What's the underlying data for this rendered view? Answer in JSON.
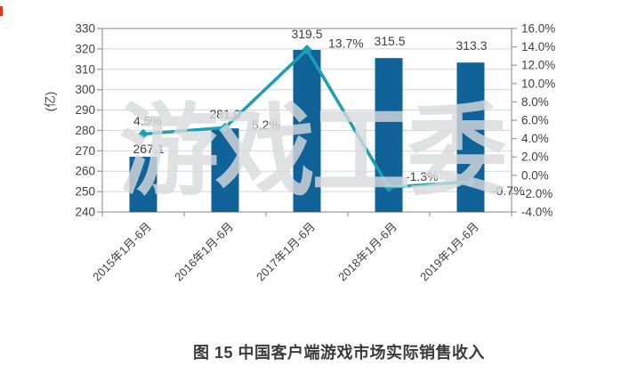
{
  "caption": "图 15 中国客户端游戏市场实际销售收入",
  "watermark": "游戏工委",
  "chart_data": {
    "type": "combo-bar-line",
    "categories": [
      "2015年1月-6月",
      "2016年1月-6月",
      "2017年1月-6月",
      "2018年1月-6月",
      "2019年1月-6月"
    ],
    "series": [
      {
        "name": "client-game-revenue",
        "type": "bar",
        "values": [
          267.1,
          281.0,
          319.5,
          315.5,
          313.3
        ],
        "labels": [
          "267.1",
          "281.0",
          "319.5",
          "315.5",
          "313.3"
        ],
        "axis": "left",
        "color": "#0f6398"
      },
      {
        "name": "growth-rate",
        "type": "line",
        "values": [
          4.5,
          5.2,
          13.7,
          -1.3,
          -0.7
        ],
        "labels": [
          "4.5%",
          "5.2%",
          "13.7%",
          "-1.3%",
          "-0.7%"
        ],
        "axis": "right",
        "color": "#1a9fb4"
      }
    ],
    "left_axis": {
      "label": "(亿)",
      "min": 240,
      "max": 330,
      "step": 10,
      "tick_labels": [
        "330",
        "320",
        "310",
        "300",
        "290",
        "280",
        "270",
        "260",
        "250",
        "240"
      ]
    },
    "right_axis": {
      "min": -4,
      "max": 16,
      "step": 2,
      "tick_labels": [
        "16.0%",
        "14.0%",
        "12.0%",
        "10.0%",
        "8.0%",
        "6.0%",
        "4.0%",
        "2.0%",
        "0.0%",
        "-2.0%",
        "-4.0%"
      ]
    },
    "grid": true,
    "legend": "none",
    "colors": {
      "bar": "#0f6398",
      "line": "#1a9fb4",
      "grid": "#d6d6d6",
      "frame": "#a0a0a0",
      "text": "#404040",
      "watermark": "#d8dadc",
      "caption_text": "#3a3a3a",
      "red_mark": "#e8340f"
    }
  }
}
